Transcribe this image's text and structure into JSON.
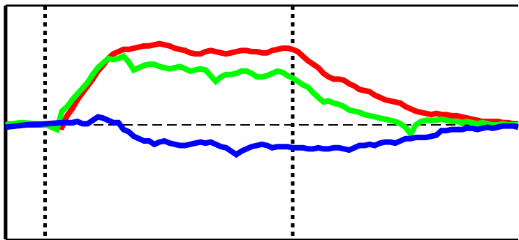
{
  "chart_data": {
    "type": "line",
    "title": "",
    "xlabel": "",
    "ylabel": "",
    "xlim": [
      0,
      100
    ],
    "ylim": [
      -1,
      1
    ],
    "grid": false,
    "legend": "none",
    "baseline": 0,
    "vertical_markers": [
      7.7,
      56.0
    ],
    "series": [
      {
        "color": "#ff0000",
        "x": [
          0,
          4,
          8,
          11,
          12,
          13,
          14,
          15,
          16,
          17,
          18,
          19,
          20,
          21,
          22,
          23,
          24,
          25,
          26,
          27,
          28,
          29,
          30,
          31,
          32,
          33,
          34,
          35,
          36,
          37,
          38,
          39,
          40,
          41,
          42,
          43,
          44,
          45,
          46,
          47,
          48,
          49,
          50,
          51,
          52,
          53,
          54,
          55,
          56,
          57,
          58,
          59,
          60,
          61,
          62,
          63,
          64,
          65,
          66,
          67,
          68,
          69,
          70,
          71,
          72,
          73,
          74,
          75,
          76,
          77,
          78,
          79,
          80,
          81,
          82,
          83,
          84,
          85,
          86,
          87,
          88,
          89,
          90,
          91,
          92,
          93,
          94,
          95,
          96,
          97,
          98,
          99,
          100
        ],
        "y": [
          0.01,
          0.0,
          0.0,
          -0.02,
          0.08,
          0.14,
          0.22,
          0.28,
          0.34,
          0.4,
          0.47,
          0.52,
          0.58,
          0.62,
          0.64,
          0.66,
          0.66,
          0.67,
          0.68,
          0.69,
          0.69,
          0.7,
          0.71,
          0.7,
          0.69,
          0.67,
          0.66,
          0.65,
          0.63,
          0.62,
          0.62,
          0.64,
          0.65,
          0.64,
          0.63,
          0.62,
          0.63,
          0.64,
          0.65,
          0.65,
          0.64,
          0.64,
          0.63,
          0.63,
          0.65,
          0.66,
          0.67,
          0.67,
          0.66,
          0.64,
          0.6,
          0.56,
          0.53,
          0.5,
          0.45,
          0.42,
          0.4,
          0.4,
          0.39,
          0.36,
          0.34,
          0.31,
          0.3,
          0.29,
          0.26,
          0.24,
          0.22,
          0.21,
          0.2,
          0.19,
          0.16,
          0.14,
          0.12,
          0.11,
          0.1,
          0.09,
          0.1,
          0.09,
          0.09,
          0.08,
          0.08,
          0.07,
          0.06,
          0.05,
          0.04,
          0.03,
          0.03,
          0.03,
          0.03,
          0.02,
          0.02,
          0.01,
          0.01
        ]
      },
      {
        "color": "#00ff00",
        "x": [
          0,
          3,
          6,
          8,
          10,
          11,
          12,
          13,
          14,
          15,
          16,
          17,
          18,
          19,
          20,
          21,
          22,
          23,
          24,
          25,
          26,
          27,
          28,
          29,
          30,
          31,
          32,
          33,
          34,
          35,
          36,
          37,
          38,
          39,
          40,
          41,
          42,
          43,
          44,
          45,
          46,
          47,
          48,
          49,
          50,
          51,
          52,
          53,
          54,
          55,
          56,
          57,
          58,
          59,
          60,
          61,
          62,
          63,
          64,
          65,
          66,
          67,
          68,
          69,
          70,
          71,
          72,
          73,
          74,
          75,
          76,
          77,
          78,
          79,
          80,
          81,
          82,
          83,
          84,
          85,
          86,
          87,
          88,
          89,
          90,
          91,
          92,
          93,
          94,
          95,
          96,
          97,
          98,
          99,
          100
        ],
        "y": [
          0.0,
          0.02,
          0.01,
          0.0,
          -0.04,
          0.12,
          0.16,
          0.22,
          0.27,
          0.32,
          0.37,
          0.44,
          0.5,
          0.54,
          0.58,
          0.57,
          0.58,
          0.6,
          0.55,
          0.48,
          0.5,
          0.52,
          0.53,
          0.53,
          0.51,
          0.5,
          0.49,
          0.5,
          0.51,
          0.49,
          0.47,
          0.48,
          0.49,
          0.48,
          0.43,
          0.38,
          0.42,
          0.44,
          0.44,
          0.45,
          0.47,
          0.47,
          0.45,
          0.42,
          0.42,
          0.43,
          0.45,
          0.47,
          0.46,
          0.43,
          0.41,
          0.38,
          0.35,
          0.33,
          0.28,
          0.24,
          0.2,
          0.21,
          0.19,
          0.18,
          0.16,
          0.13,
          0.12,
          0.11,
          0.09,
          0.08,
          0.07,
          0.06,
          0.05,
          0.04,
          0.03,
          0.01,
          -0.02,
          -0.08,
          0.0,
          0.03,
          0.04,
          0.04,
          0.04,
          0.05,
          0.04,
          0.03,
          0.03,
          0.02,
          0.03,
          0.02,
          0.01,
          0.02,
          0.01,
          0.0,
          0.0,
          0.01,
          0.0,
          0.0,
          0.0
        ]
      },
      {
        "color": "#0000ff",
        "x": [
          0,
          4,
          8,
          11,
          12,
          13,
          14,
          15,
          16,
          17,
          18,
          19,
          20,
          21,
          22,
          23,
          24,
          25,
          26,
          27,
          28,
          29,
          30,
          31,
          32,
          33,
          34,
          35,
          36,
          37,
          38,
          39,
          40,
          41,
          42,
          43,
          44,
          45,
          46,
          47,
          48,
          49,
          50,
          51,
          52,
          53,
          54,
          55,
          56,
          57,
          58,
          59,
          60,
          61,
          62,
          63,
          64,
          65,
          66,
          67,
          68,
          69,
          70,
          71,
          72,
          73,
          74,
          75,
          76,
          77,
          78,
          79,
          80,
          81,
          82,
          83,
          84,
          85,
          86,
          87,
          88,
          89,
          90,
          91,
          92,
          93,
          94,
          95,
          96,
          97,
          98,
          99,
          100
        ],
        "y": [
          -0.02,
          0.0,
          0.01,
          0.02,
          0.02,
          0.02,
          0.03,
          0.01,
          0.01,
          0.04,
          0.07,
          0.06,
          0.04,
          0.02,
          0.02,
          -0.04,
          -0.06,
          -0.1,
          -0.12,
          -0.14,
          -0.14,
          -0.17,
          -0.15,
          -0.14,
          -0.16,
          -0.17,
          -0.18,
          -0.18,
          -0.17,
          -0.16,
          -0.15,
          -0.16,
          -0.15,
          -0.17,
          -0.19,
          -0.2,
          -0.23,
          -0.26,
          -0.23,
          -0.21,
          -0.19,
          -0.18,
          -0.17,
          -0.18,
          -0.2,
          -0.19,
          -0.19,
          -0.19,
          -0.2,
          -0.2,
          -0.2,
          -0.21,
          -0.21,
          -0.2,
          -0.21,
          -0.21,
          -0.2,
          -0.2,
          -0.21,
          -0.22,
          -0.2,
          -0.18,
          -0.18,
          -0.17,
          -0.18,
          -0.16,
          -0.15,
          -0.15,
          -0.16,
          -0.14,
          -0.12,
          -0.12,
          -0.11,
          -0.11,
          -0.11,
          -0.1,
          -0.09,
          -0.05,
          -0.05,
          -0.04,
          -0.04,
          -0.04,
          -0.03,
          -0.03,
          -0.04,
          -0.03,
          -0.02,
          -0.03,
          -0.02,
          -0.01,
          -0.01,
          -0.01,
          -0.02
        ]
      }
    ]
  }
}
